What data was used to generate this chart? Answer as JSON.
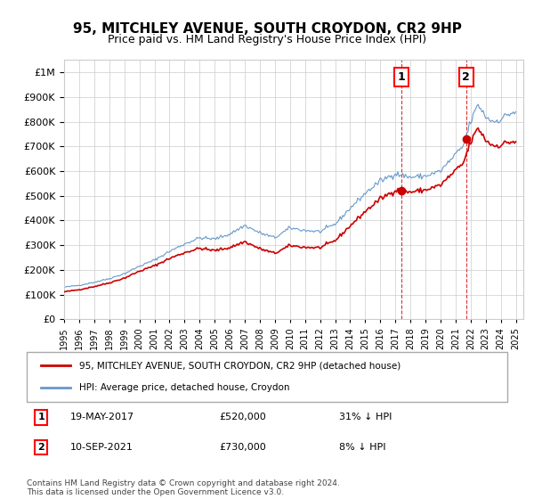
{
  "title": "95, MITCHLEY AVENUE, SOUTH CROYDON, CR2 9HP",
  "subtitle": "Price paid vs. HM Land Registry's House Price Index (HPI)",
  "legend_line1": "95, MITCHLEY AVENUE, SOUTH CROYDON, CR2 9HP (detached house)",
  "legend_line2": "HPI: Average price, detached house, Croydon",
  "annotation1_date": "2017-05-19",
  "annotation1_label": "1",
  "annotation1_price": 520000,
  "annotation1_text": "19-MAY-2017    £520,000    31% ↓ HPI",
  "annotation2_date": "2021-09-10",
  "annotation2_label": "2",
  "annotation2_price": 730000,
  "annotation2_text": "10-SEP-2021    £730,000    8% ↓ HPI",
  "footer": "Contains HM Land Registry data © Crown copyright and database right 2024.\nThis data is licensed under the Open Government Licence v3.0.",
  "hpi_color": "#6699cc",
  "price_color": "#cc0000",
  "annotation_color": "#cc0000",
  "ylim_max": 1050000,
  "ylim_min": 0,
  "xlabel_years": [
    "1995",
    "1996",
    "1997",
    "1998",
    "1999",
    "2000",
    "2001",
    "2002",
    "2003",
    "2004",
    "2005",
    "2006",
    "2007",
    "2008",
    "2009",
    "2010",
    "2011",
    "2012",
    "2013",
    "2014",
    "2015",
    "2016",
    "2017",
    "2018",
    "2019",
    "2020",
    "2021",
    "2022",
    "2023",
    "2024",
    "2025"
  ]
}
